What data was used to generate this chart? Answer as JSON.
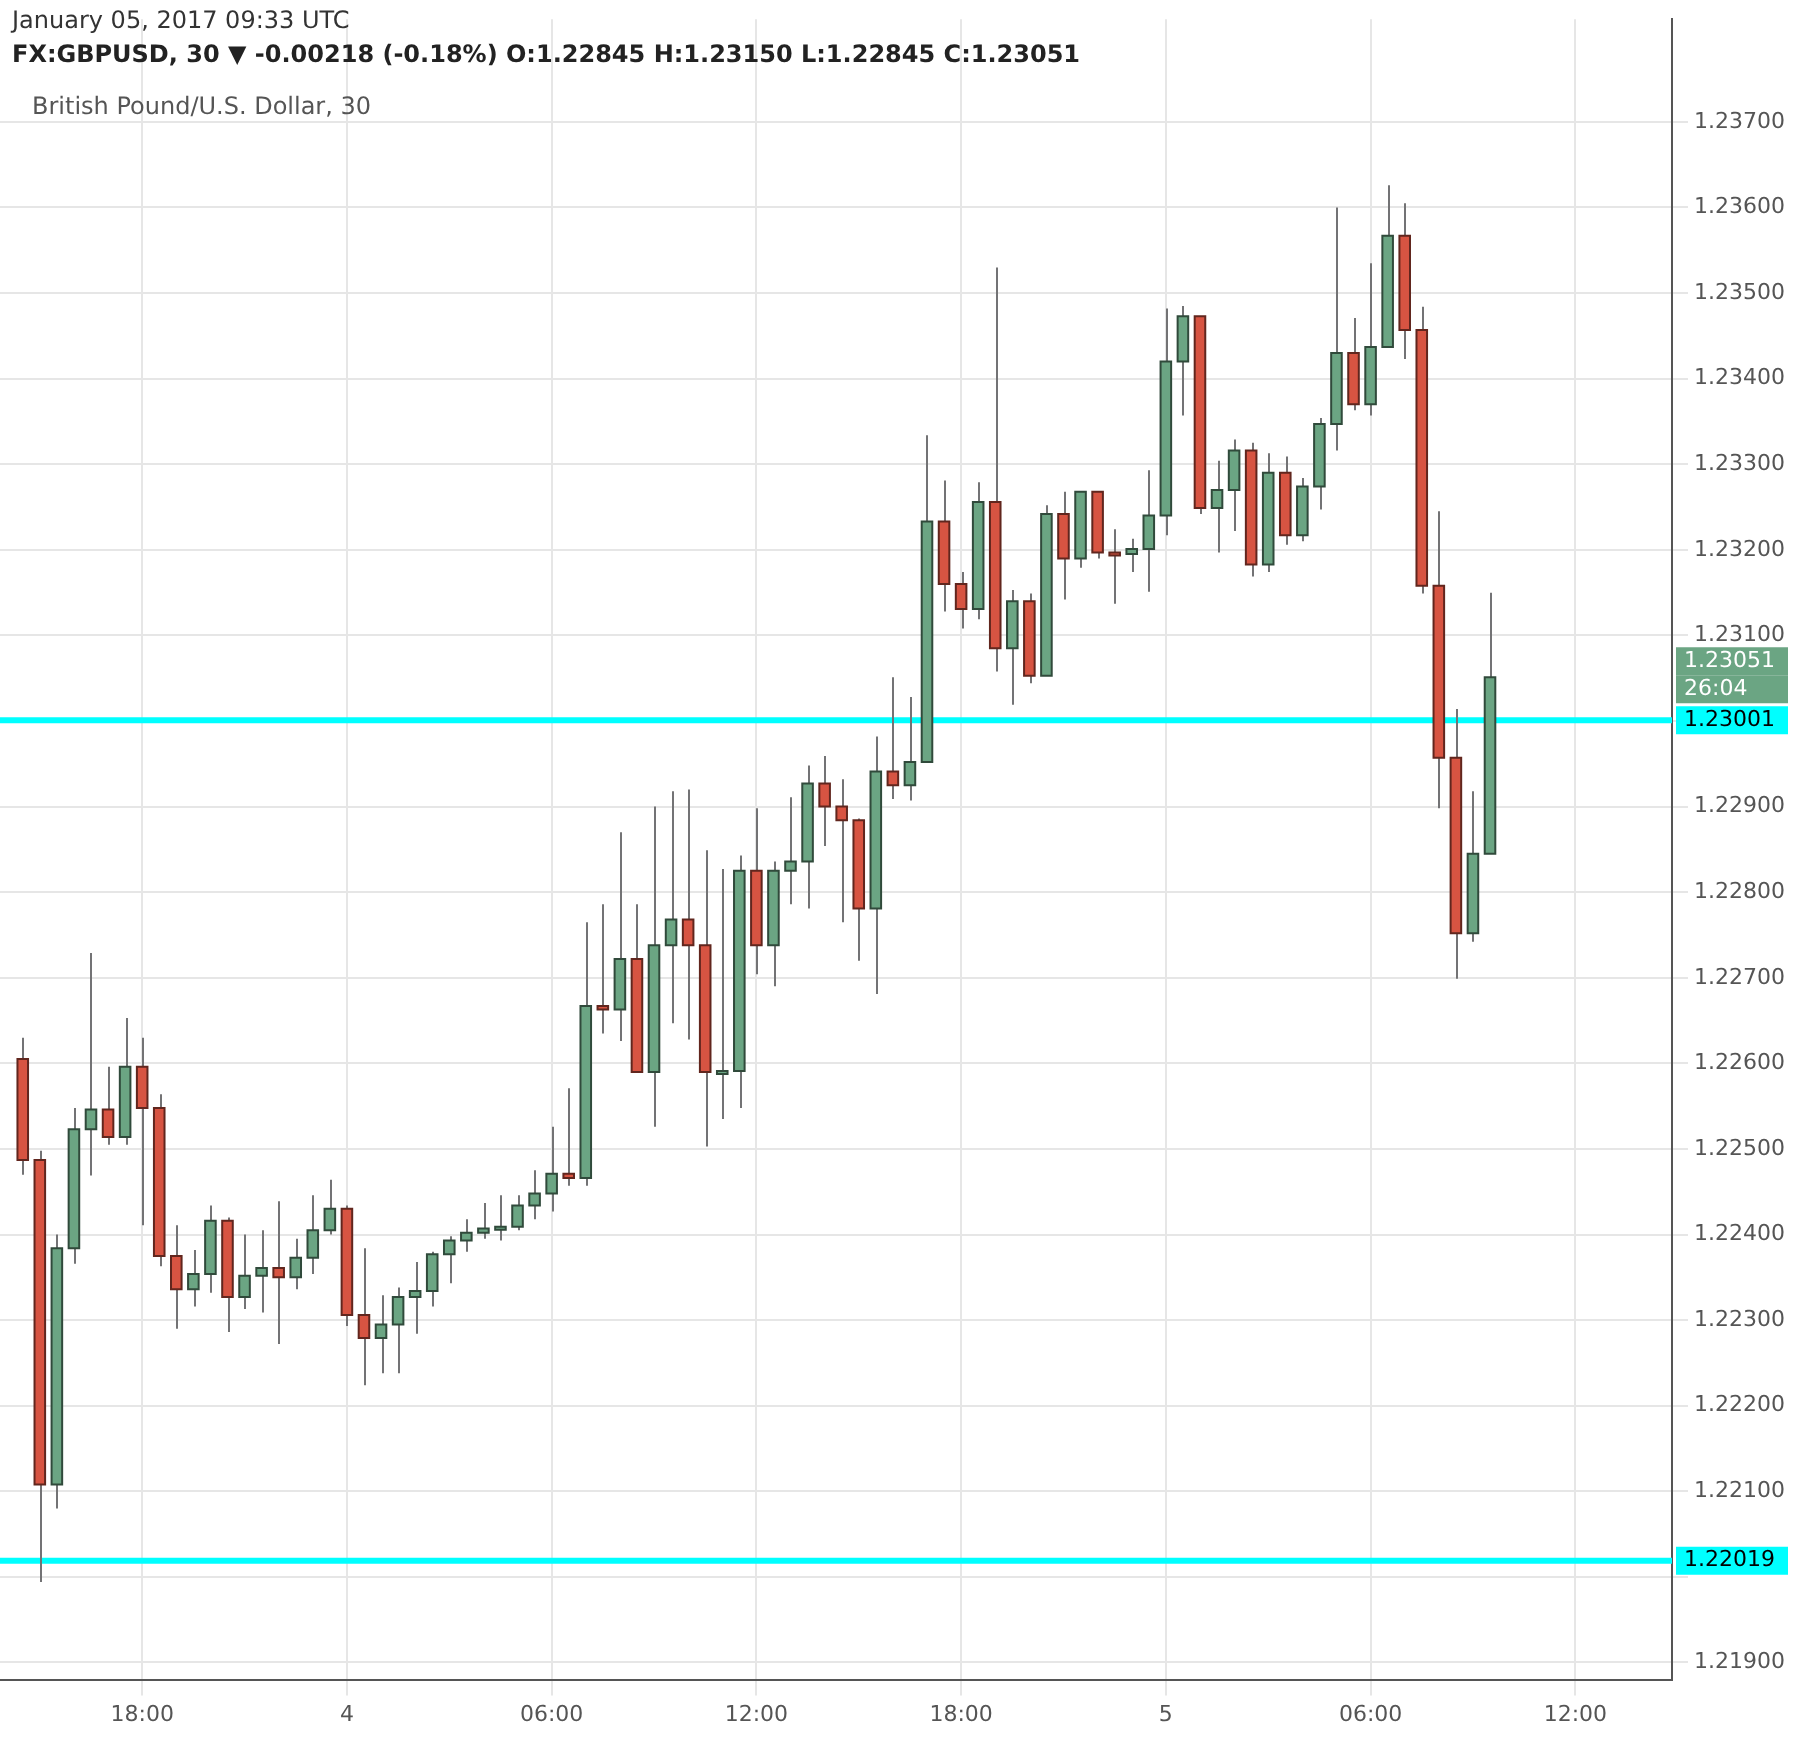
{
  "chart_data": {
    "type": "candlestick",
    "title": "British Pound/U.S. Dollar, 30",
    "subtitle": "January 05, 2017 09:33 UTC",
    "annotations": [
      "1.23051",
      "26:04",
      "FX:GBPUSD, 30 ▼ -0.00218 (-0.18%) O:1.22845 H:1.23150 L:1.22845 C:1.23051"
    ],
    "x": [
      "2017-01-03T14:30",
      "2017-01-03T15:00",
      "2017-01-03T15:30",
      "2017-01-03T16:00",
      "2017-01-03T16:30",
      "2017-01-03T17:00",
      "2017-01-03T17:30",
      "2017-01-03T18:00",
      "2017-01-03T18:30",
      "2017-01-03T19:00",
      "2017-01-03T19:30",
      "2017-01-03T20:00",
      "2017-01-03T20:30",
      "2017-01-03T21:00",
      "2017-01-03T21:30",
      "2017-01-03T22:00",
      "2017-01-03T22:30",
      "2017-01-03T23:00",
      "2017-01-03T23:30",
      "2017-01-04T00:00",
      "2017-01-04T00:30",
      "2017-01-04T01:00",
      "2017-01-04T01:30",
      "2017-01-04T02:00",
      "2017-01-04T02:30",
      "2017-01-04T03:00",
      "2017-01-04T03:30",
      "2017-01-04T04:00",
      "2017-01-04T04:30",
      "2017-01-04T05:00",
      "2017-01-04T05:30",
      "2017-01-04T06:00",
      "2017-01-04T06:30",
      "2017-01-04T07:00",
      "2017-01-04T07:30",
      "2017-01-04T08:00",
      "2017-01-04T08:30",
      "2017-01-04T09:00",
      "2017-01-04T09:30",
      "2017-01-04T10:00",
      "2017-01-04T10:30",
      "2017-01-04T11:00",
      "2017-01-04T11:30",
      "2017-01-04T12:00",
      "2017-01-04T12:30",
      "2017-01-04T13:00",
      "2017-01-04T13:30",
      "2017-01-04T14:00",
      "2017-01-04T14:30",
      "2017-01-04T15:00",
      "2017-01-04T15:30",
      "2017-01-04T16:00",
      "2017-01-04T16:30",
      "2017-01-04T17:00",
      "2017-01-04T17:30",
      "2017-01-04T18:00",
      "2017-01-04T18:30",
      "2017-01-04T19:00",
      "2017-01-04T19:30",
      "2017-01-04T20:00",
      "2017-01-04T20:30",
      "2017-01-04T21:00",
      "2017-01-04T21:30",
      "2017-01-04T22:00",
      "2017-01-04T22:30",
      "2017-01-04T23:00",
      "2017-01-04T23:30",
      "2017-01-05T00:00",
      "2017-01-05T00:30",
      "2017-01-05T01:00",
      "2017-01-05T01:30",
      "2017-01-05T02:00",
      "2017-01-05T02:30",
      "2017-01-05T03:00",
      "2017-01-05T03:30",
      "2017-01-05T04:00",
      "2017-01-05T04:30",
      "2017-01-05T05:00",
      "2017-01-05T05:30",
      "2017-01-05T06:00",
      "2017-01-05T06:30",
      "2017-01-05T07:00",
      "2017-01-05T07:30",
      "2017-01-05T08:00",
      "2017-01-05T08:30",
      "2017-01-05T09:00",
      "2017-01-05T09:30"
    ],
    "ohlc": [
      [
        1.22605,
        1.2263,
        1.2247,
        1.22487
      ],
      [
        1.22487,
        1.22498,
        1.21994,
        1.22108
      ],
      [
        1.22108,
        1.224,
        1.2208,
        1.22384
      ],
      [
        1.22384,
        1.22548,
        1.22366,
        1.22523
      ],
      [
        1.22523,
        1.22729,
        1.22469,
        1.22546
      ],
      [
        1.22546,
        1.22596,
        1.22505,
        1.22514
      ],
      [
        1.22514,
        1.22653,
        1.22505,
        1.22596
      ],
      [
        1.22596,
        1.2263,
        1.22411,
        1.22548
      ],
      [
        1.22548,
        1.22564,
        1.22363,
        1.22375
      ],
      [
        1.22375,
        1.22411,
        1.2229,
        1.22336
      ],
      [
        1.22336,
        1.22382,
        1.22316,
        1.22354
      ],
      [
        1.22354,
        1.22434,
        1.22332,
        1.22416
      ],
      [
        1.22416,
        1.2242,
        1.22286,
        1.22327
      ],
      [
        1.22327,
        1.224,
        1.22313,
        1.22352
      ],
      [
        1.22352,
        1.22405,
        1.22309,
        1.22361
      ],
      [
        1.22361,
        1.22439,
        1.22272,
        1.2235
      ],
      [
        1.2235,
        1.22395,
        1.22336,
        1.22373
      ],
      [
        1.22373,
        1.22446,
        1.22354,
        1.22405
      ],
      [
        1.22405,
        1.22464,
        1.224,
        1.2243
      ],
      [
        1.2243,
        1.22434,
        1.22293,
        1.22306
      ],
      [
        1.22306,
        1.22384,
        1.22224,
        1.22279
      ],
      [
        1.22279,
        1.22329,
        1.22238,
        1.22295
      ],
      [
        1.22295,
        1.22338,
        1.22238,
        1.22327
      ],
      [
        1.22327,
        1.22368,
        1.22284,
        1.22334
      ],
      [
        1.22334,
        1.2238,
        1.22316,
        1.22377
      ],
      [
        1.22377,
        1.22398,
        1.22343,
        1.22393
      ],
      [
        1.22393,
        1.22418,
        1.2238,
        1.22402
      ],
      [
        1.22402,
        1.22437,
        1.22395,
        1.22407
      ],
      [
        1.22407,
        1.22446,
        1.22393,
        1.22409
      ],
      [
        1.22409,
        1.22446,
        1.22405,
        1.22434
      ],
      [
        1.22434,
        1.22475,
        1.22418,
        1.22448
      ],
      [
        1.22448,
        1.22526,
        1.22427,
        1.22471
      ],
      [
        1.22471,
        1.22571,
        1.22457,
        1.22466
      ],
      [
        1.22466,
        1.22765,
        1.22457,
        1.22667
      ],
      [
        1.22667,
        1.22786,
        1.22635,
        1.22663
      ],
      [
        1.22663,
        1.2287,
        1.22626,
        1.22722
      ],
      [
        1.22722,
        1.22786,
        1.2259,
        1.2259
      ],
      [
        1.2259,
        1.229,
        1.22526,
        1.22738
      ],
      [
        1.22738,
        1.22918,
        1.22647,
        1.22768
      ],
      [
        1.22768,
        1.2292,
        1.22628,
        1.22738
      ],
      [
        1.22738,
        1.22849,
        1.22503,
        1.2259
      ],
      [
        1.2259,
        1.22827,
        1.22535,
        1.22591
      ],
      [
        1.22591,
        1.22843,
        1.22548,
        1.22825
      ],
      [
        1.22825,
        1.22898,
        1.22704,
        1.22738
      ],
      [
        1.22738,
        1.22836,
        1.2269,
        1.22825
      ],
      [
        1.22825,
        1.22911,
        1.22786,
        1.22836
      ],
      [
        1.22836,
        1.22948,
        1.22781,
        1.22927
      ],
      [
        1.22927,
        1.22959,
        1.22854,
        1.229
      ],
      [
        1.229,
        1.22932,
        1.22765,
        1.22884
      ],
      [
        1.22884,
        1.22886,
        1.2272,
        1.22781
      ],
      [
        1.22781,
        1.22982,
        1.22681,
        1.22941
      ],
      [
        1.22941,
        1.23051,
        1.22909,
        1.22925
      ],
      [
        1.22925,
        1.23028,
        1.22907,
        1.22952
      ],
      [
        1.22952,
        1.23334,
        1.22952,
        1.23233
      ],
      [
        1.23233,
        1.23281,
        1.23128,
        1.2316
      ],
      [
        1.2316,
        1.23174,
        1.23108,
        1.23131
      ],
      [
        1.23131,
        1.23279,
        1.23119,
        1.23256
      ],
      [
        1.23256,
        1.2353,
        1.23058,
        1.23085
      ],
      [
        1.23085,
        1.23153,
        1.23019,
        1.2314
      ],
      [
        1.2314,
        1.23149,
        1.23044,
        1.23053
      ],
      [
        1.23053,
        1.23252,
        1.23053,
        1.23242
      ],
      [
        1.23242,
        1.23268,
        1.23142,
        1.2319
      ],
      [
        1.2319,
        1.23268,
        1.23179,
        1.23268
      ],
      [
        1.23268,
        1.23268,
        1.2319,
        1.23197
      ],
      [
        1.23197,
        1.23224,
        1.23137,
        1.23195
      ],
      [
        1.23195,
        1.23213,
        1.23174,
        1.23201
      ],
      [
        1.23201,
        1.23293,
        1.23151,
        1.2324
      ],
      [
        1.2324,
        1.23482,
        1.23217,
        1.2342
      ],
      [
        1.2342,
        1.23485,
        1.23357,
        1.23473
      ],
      [
        1.23473,
        1.23473,
        1.23242,
        1.23249
      ],
      [
        1.23249,
        1.23304,
        1.23197,
        1.2327
      ],
      [
        1.2327,
        1.23329,
        1.23222,
        1.23316
      ],
      [
        1.23316,
        1.23325,
        1.23169,
        1.23183
      ],
      [
        1.23183,
        1.23313,
        1.23174,
        1.2329
      ],
      [
        1.2329,
        1.23309,
        1.23206,
        1.23217
      ],
      [
        1.23217,
        1.23284,
        1.2321,
        1.23274
      ],
      [
        1.23274,
        1.23354,
        1.23247,
        1.23347
      ],
      [
        1.23347,
        1.236,
        1.23316,
        1.2343
      ],
      [
        1.2343,
        1.23471,
        1.23363,
        1.2337
      ],
      [
        1.2337,
        1.23535,
        1.23357,
        1.23437
      ],
      [
        1.23437,
        1.23626,
        1.23437,
        1.23567
      ],
      [
        1.23567,
        1.23605,
        1.23423,
        1.23457
      ],
      [
        1.23457,
        1.23484,
        1.23149,
        1.23158
      ],
      [
        1.23158,
        1.23245,
        1.22898,
        1.22957
      ],
      [
        1.22957,
        1.23014,
        1.22699,
        1.22752
      ],
      [
        1.22752,
        1.22918,
        1.22742,
        1.22845
      ],
      [
        1.22845,
        1.2315,
        1.22845,
        1.23051
      ]
    ],
    "colors": [
      "#d75442",
      "#d75442",
      "#6ba583",
      "#6ba583",
      "#6ba583",
      "#d75442",
      "#6ba583",
      "#d75442",
      "#d75442",
      "#d75442",
      "#6ba583",
      "#6ba583",
      "#d75442",
      "#6ba583",
      "#6ba583",
      "#d75442",
      "#6ba583",
      "#6ba583",
      "#6ba583",
      "#d75442",
      "#d75442",
      "#6ba583",
      "#6ba583",
      "#6ba583",
      "#6ba583",
      "#6ba583",
      "#6ba583",
      "#6ba583",
      "#6ba583",
      "#6ba583",
      "#6ba583",
      "#6ba583",
      "#d75442",
      "#6ba583",
      "#d75442",
      "#6ba583",
      "#d75442",
      "#6ba583",
      "#6ba583",
      "#d75442",
      "#d75442",
      "#6ba583",
      "#6ba583",
      "#d75442",
      "#6ba583",
      "#6ba583",
      "#6ba583",
      "#d75442",
      "#d75442",
      "#d75442",
      "#6ba583",
      "#d75442",
      "#6ba583",
      "#6ba583",
      "#d75442",
      "#d75442",
      "#6ba583",
      "#d75442",
      "#6ba583",
      "#d75442",
      "#6ba583",
      "#d75442",
      "#6ba583",
      "#d75442",
      "#d75442",
      "#6ba583",
      "#6ba583",
      "#6ba583",
      "#6ba583",
      "#d75442",
      "#6ba583",
      "#6ba583",
      "#d75442",
      "#6ba583",
      "#d75442",
      "#6ba583",
      "#6ba583",
      "#6ba583",
      "#d75442",
      "#6ba583",
      "#6ba583",
      "#d75442",
      "#d75442",
      "#d75442",
      "#d75442",
      "#6ba583",
      "#6ba583"
    ],
    "xlim": [
      "2017-01-03T13:50",
      "2017-01-05T14:50"
    ],
    "xticks": [
      {
        "value": "2017-01-03T18:00",
        "label": "18:00"
      },
      {
        "value": "2017-01-04T00:00",
        "label": "4"
      },
      {
        "value": "2017-01-04T06:00",
        "label": "06:00"
      },
      {
        "value": "2017-01-04T12:00",
        "label": "12:00"
      },
      {
        "value": "2017-01-04T18:00",
        "label": "18:00"
      },
      {
        "value": "2017-01-05T00:00",
        "label": "5"
      },
      {
        "value": "2017-01-05T06:00",
        "label": "06:00"
      },
      {
        "value": "2017-01-05T12:00",
        "label": "12:00"
      }
    ],
    "ylim": [
      1.2188,
      1.2382
    ],
    "yticks": [
      {
        "value": 1.219,
        "label": "1.21900"
      },
      {
        "value": 1.22,
        "label": null
      },
      {
        "value": 1.221,
        "label": "1.22100"
      },
      {
        "value": 1.222,
        "label": "1.22200"
      },
      {
        "value": 1.223,
        "label": "1.22300"
      },
      {
        "value": 1.224,
        "label": "1.22400"
      },
      {
        "value": 1.225,
        "label": "1.22500"
      },
      {
        "value": 1.226,
        "label": "1.22600"
      },
      {
        "value": 1.227,
        "label": "1.22700"
      },
      {
        "value": 1.228,
        "label": "1.22800"
      },
      {
        "value": 1.229,
        "label": "1.22900"
      },
      {
        "value": 1.23,
        "label": null
      },
      {
        "value": 1.231,
        "label": "1.23100"
      },
      {
        "value": 1.232,
        "label": "1.23200"
      },
      {
        "value": 1.233,
        "label": "1.23300"
      },
      {
        "value": 1.234,
        "label": "1.23400"
      },
      {
        "value": 1.235,
        "label": "1.23500"
      },
      {
        "value": 1.236,
        "label": "1.23600"
      },
      {
        "value": 1.237,
        "label": "1.23700"
      }
    ],
    "ref_lines": [
      {
        "axis": "y",
        "value": 1.23001,
        "label": "1.23001",
        "color": "#00ffff"
      },
      {
        "axis": "y",
        "value": 1.22019,
        "label": "1.22019",
        "color": "#00ffff"
      }
    ],
    "grid": true,
    "legend": false
  }
}
